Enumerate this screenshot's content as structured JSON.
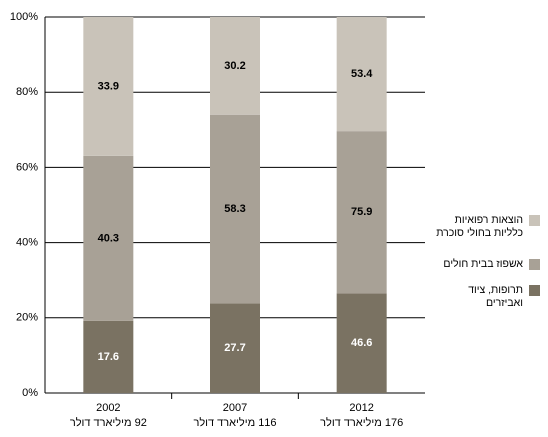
{
  "chart_data": {
    "type": "percent_stacked_bar",
    "categories": [
      "2002",
      "2007",
      "2012"
    ],
    "category_totals": [
      "92 מיליארד דולר",
      "116 מיליארד דולר",
      "176 מיליארד דולר"
    ],
    "series": [
      {
        "name": "תרופות, ציוד ואביזרים",
        "color": "#7a7262",
        "values": [
          17.6,
          27.7,
          46.6
        ]
      },
      {
        "name": "אשפוז בבית חולים",
        "color": "#a8a196",
        "values": [
          40.3,
          58.3,
          75.9
        ]
      },
      {
        "name": "הוצאות רפואיות כלליות בחולי סוכרת",
        "color": "#c9c3b9",
        "values": [
          33.9,
          30.2,
          53.4
        ]
      }
    ],
    "ylim": [
      0,
      100
    ],
    "yticks": [
      {
        "value": 0,
        "label": "0%"
      },
      {
        "value": 20,
        "label": "20%"
      },
      {
        "value": 40,
        "label": "40%"
      },
      {
        "value": 60,
        "label": "60%"
      },
      {
        "value": 80,
        "label": "80%"
      },
      {
        "value": 100,
        "label": "100%"
      }
    ],
    "grid": true
  }
}
